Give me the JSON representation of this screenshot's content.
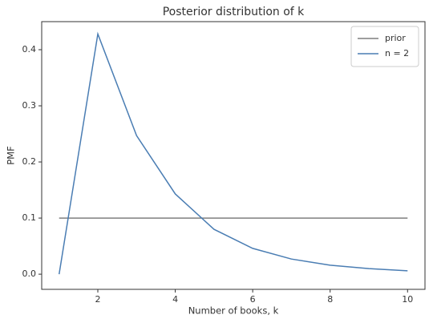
{
  "chart_data": {
    "type": "line",
    "title": "Posterior distribution of k",
    "xlabel": "Number of books, k",
    "ylabel": "PMF",
    "x": [
      1,
      2,
      3,
      4,
      5,
      6,
      7,
      8,
      9,
      10
    ],
    "series": [
      {
        "name": "prior",
        "color": "#7f7f7f",
        "values": [
          0.1,
          0.1,
          0.1,
          0.1,
          0.1,
          0.1,
          0.1,
          0.1,
          0.1,
          0.1
        ]
      },
      {
        "name": "n = 2",
        "color": "#4a7db3",
        "values": [
          0,
          0.428,
          0.247,
          0.143,
          0.08,
          0.046,
          0.027,
          0.016,
          0.01,
          0.006
        ]
      }
    ],
    "xlim": [
      0.55,
      10.45
    ],
    "ylim": [
      -0.027,
      0.45
    ],
    "xticks": [
      2,
      4,
      6,
      8,
      10
    ],
    "yticks": [
      {
        "value": 0,
        "label": "0.0"
      },
      0.1,
      0.2,
      0.3,
      0.4
    ],
    "legend": "upper right"
  }
}
